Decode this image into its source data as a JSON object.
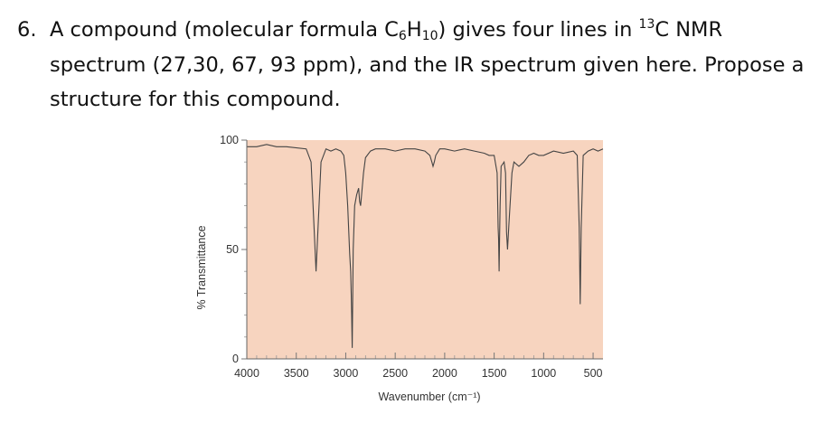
{
  "question": {
    "number": "6.",
    "line1_a": "A compound (molecular formula C",
    "line1_sub1": "6",
    "line1_b": "H",
    "line1_sub2": "10",
    "line1_c": ") gives four lines in ",
    "line1_sup": "13",
    "line1_d": "C NMR",
    "line2": "spectrum (27,30, 67, 93 ppm), and the IR spectrum given here.  Propose a",
    "line3": "structure for this compound."
  },
  "chart_data": {
    "type": "line",
    "title": "",
    "xlabel": "Wavenumber (cm⁻¹)",
    "ylabel": "% Transmittance",
    "xlim": [
      4000,
      400
    ],
    "ylim": [
      0,
      100
    ],
    "x_reversed": true,
    "x_ticks": [
      4000,
      3500,
      3000,
      2500,
      2000,
      1500,
      1000,
      500
    ],
    "x_tick_labels": [
      "4000",
      "3500",
      "3000",
      "2500",
      "2000",
      "1500",
      "1000",
      "500"
    ],
    "y_ticks": [
      0,
      50,
      100
    ],
    "y_tick_labels": [
      "0",
      "50",
      "100"
    ],
    "grid": false,
    "colors": {
      "background": "#f7d4bf",
      "line": "#444444"
    },
    "series": [
      {
        "x": [
          4000,
          3900,
          3800,
          3700,
          3600,
          3400,
          3350,
          3320,
          3300,
          3280,
          3250,
          3200,
          3150,
          3100,
          3050,
          3020,
          3000,
          2980,
          2960,
          2950,
          2945,
          2940,
          2935,
          2925,
          2910,
          2890,
          2870,
          2860,
          2850,
          2820,
          2800,
          2750,
          2700,
          2600,
          2500,
          2400,
          2300,
          2200,
          2150,
          2130,
          2118,
          2105,
          2090,
          2050,
          2000,
          1900,
          1800,
          1700,
          1600,
          1550,
          1500,
          1470,
          1460,
          1455,
          1450,
          1445,
          1440,
          1430,
          1400,
          1385,
          1375,
          1365,
          1350,
          1320,
          1300,
          1250,
          1200,
          1150,
          1100,
          1050,
          1000,
          900,
          800,
          700,
          660,
          640,
          630,
          620,
          600,
          550,
          500,
          450,
          400
        ],
        "y": [
          97,
          97,
          98,
          97,
          97,
          96,
          90,
          60,
          40,
          60,
          90,
          96,
          95,
          96,
          95,
          93,
          85,
          70,
          48,
          40,
          30,
          20,
          5,
          50,
          70,
          75,
          78,
          72,
          70,
          85,
          92,
          95,
          96,
          96,
          95,
          96,
          96,
          95,
          93,
          90,
          88,
          90,
          93,
          96,
          96,
          95,
          96,
          95,
          94,
          93,
          93,
          85,
          60,
          55,
          40,
          55,
          70,
          88,
          90,
          85,
          58,
          50,
          62,
          85,
          90,
          88,
          90,
          93,
          94,
          93,
          93,
          95,
          94,
          95,
          93,
          60,
          25,
          60,
          93,
          95,
          96,
          95,
          96
        ]
      }
    ]
  }
}
